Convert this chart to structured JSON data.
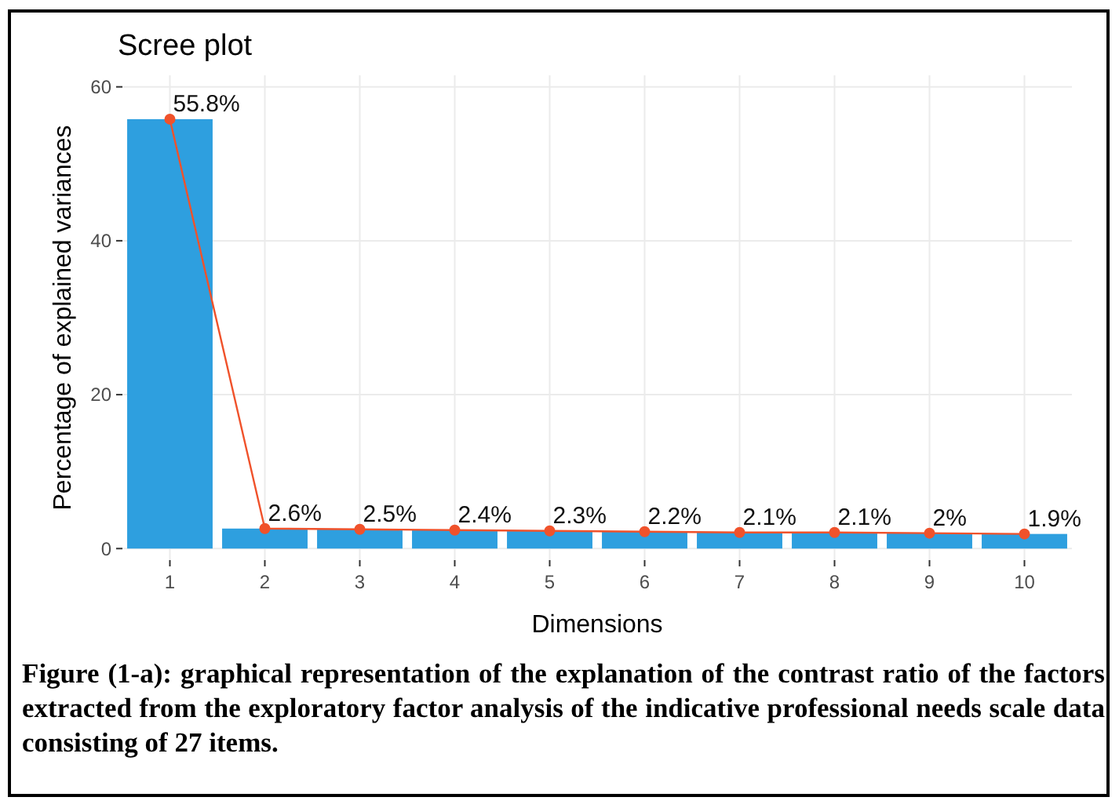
{
  "chart_data": {
    "type": "bar",
    "title": "Scree plot",
    "xlabel": "Dimensions",
    "ylabel": "Percentage of explained variances",
    "categories": [
      "1",
      "2",
      "3",
      "4",
      "5",
      "6",
      "7",
      "8",
      "9",
      "10"
    ],
    "series": [
      {
        "color": "#2e9fdf",
        "values": [
          55.8,
          2.6,
          2.5,
          2.4,
          2.3,
          2.2,
          2.1,
          2.1,
          2.0,
          1.9
        ]
      },
      {
        "type": "line",
        "color": "#f0522b",
        "marker": "circle",
        "values": [
          55.8,
          2.6,
          2.5,
          2.4,
          2.3,
          2.2,
          2.1,
          2.1,
          2.0,
          1.9
        ],
        "value_labels": [
          "55.8%",
          "2.6%",
          "2.5%",
          "2.4%",
          "2.3%",
          "2.2%",
          "2.1%",
          "2.1%",
          "2%",
          "1.9%"
        ]
      }
    ],
    "ylim": [
      -1.5,
      61.5
    ],
    "yticks": [
      0,
      20,
      40,
      60
    ],
    "grid": true,
    "annotations": [
      "Figure (1-a): graphical representation of the explanation of the contrast ratio of the factors extracted from the exploratory factor analysis of the indicative professional needs scale data consisting of 27 items."
    ]
  }
}
